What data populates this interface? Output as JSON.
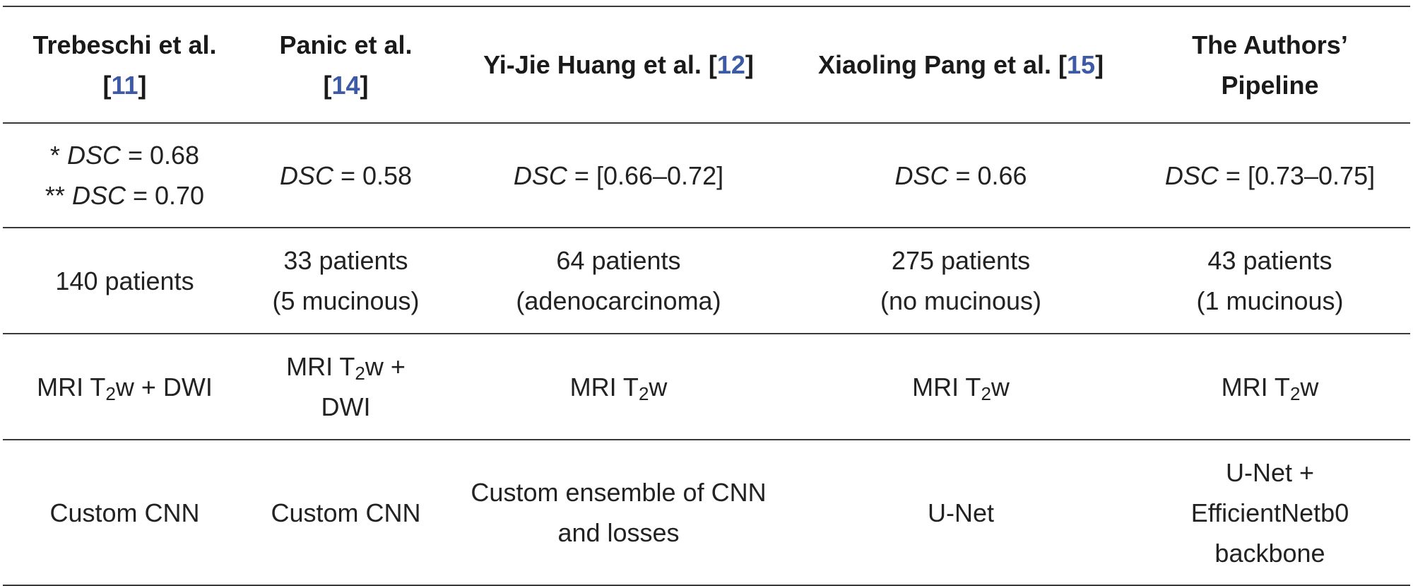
{
  "headers": [
    {
      "name": "Trebeschi et al.",
      "ref": "11"
    },
    {
      "name": "Panic et al.",
      "ref": "14"
    },
    {
      "name": "Yi-Jie Huang et al.",
      "ref": "12"
    },
    {
      "name": "Xiaoling Pang et al.",
      "ref": "15"
    },
    {
      "name": "The Authors’ Pipeline",
      "ref": ""
    }
  ],
  "dsc_row": {
    "metric": "DSC",
    "c1_line1_prefix": "*",
    "c1_line1_value": "= 0.68",
    "c1_line2_prefix": "**",
    "c1_line2_value": "= 0.70",
    "c2_value": "= 0.58",
    "c3_value": "= [0.66–0.72]",
    "c4_value": "= 0.66",
    "c5_value": "= [0.73–0.75]"
  },
  "patients_row": [
    {
      "line1": "140 patients",
      "line2": ""
    },
    {
      "line1": "33 patients",
      "line2": "(5 mucinous)"
    },
    {
      "line1": "64 patients",
      "line2": "(adenocarcinoma)"
    },
    {
      "line1": "275 patients",
      "line2": "(no mucinous)"
    },
    {
      "line1": "43 patients",
      "line2": "(1 mucinous)"
    }
  ],
  "modality_row": {
    "prefix": "MRI T",
    "subscript": "2",
    "suffix": "w",
    "c1_extra": " + DWI",
    "c2_extra_line1": " +",
    "c2_extra_line2": "DWI"
  },
  "architecture_row": [
    "Custom CNN",
    "Custom CNN",
    "Custom ensemble of CNN and losses",
    "U-Net",
    "U-Net + EfficientNetb0 backbone"
  ]
}
